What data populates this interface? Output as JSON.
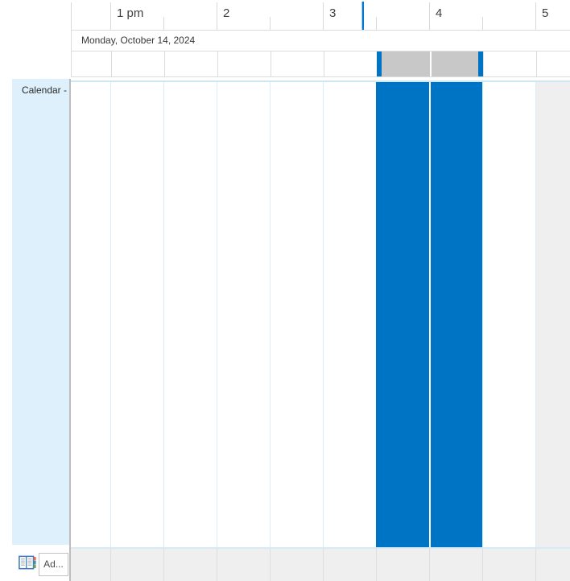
{
  "timeline": {
    "hour_labels": [
      "1 pm",
      "2",
      "3",
      "4",
      "5"
    ]
  },
  "date_header": {
    "label": "Monday, October 14, 2024"
  },
  "schedule": {
    "calendar_label": "Calendar -",
    "selected_slot": {
      "start": "3:30 PM",
      "end": "4:30 PM"
    }
  },
  "footer": {
    "add_calendar_label": "Ad...",
    "address_book_icon": "address-book-icon"
  },
  "colors": {
    "accent_blue": "#0074c4",
    "current_time_blue": "#0078d4",
    "selection_gray": "#c8c8c8",
    "sidebar_blue": "#ddf0fb",
    "grid_line_blue": "#d9edf9",
    "off_hours_gray": "#efefef",
    "ruler_line_gray": "#d9d9d9"
  }
}
